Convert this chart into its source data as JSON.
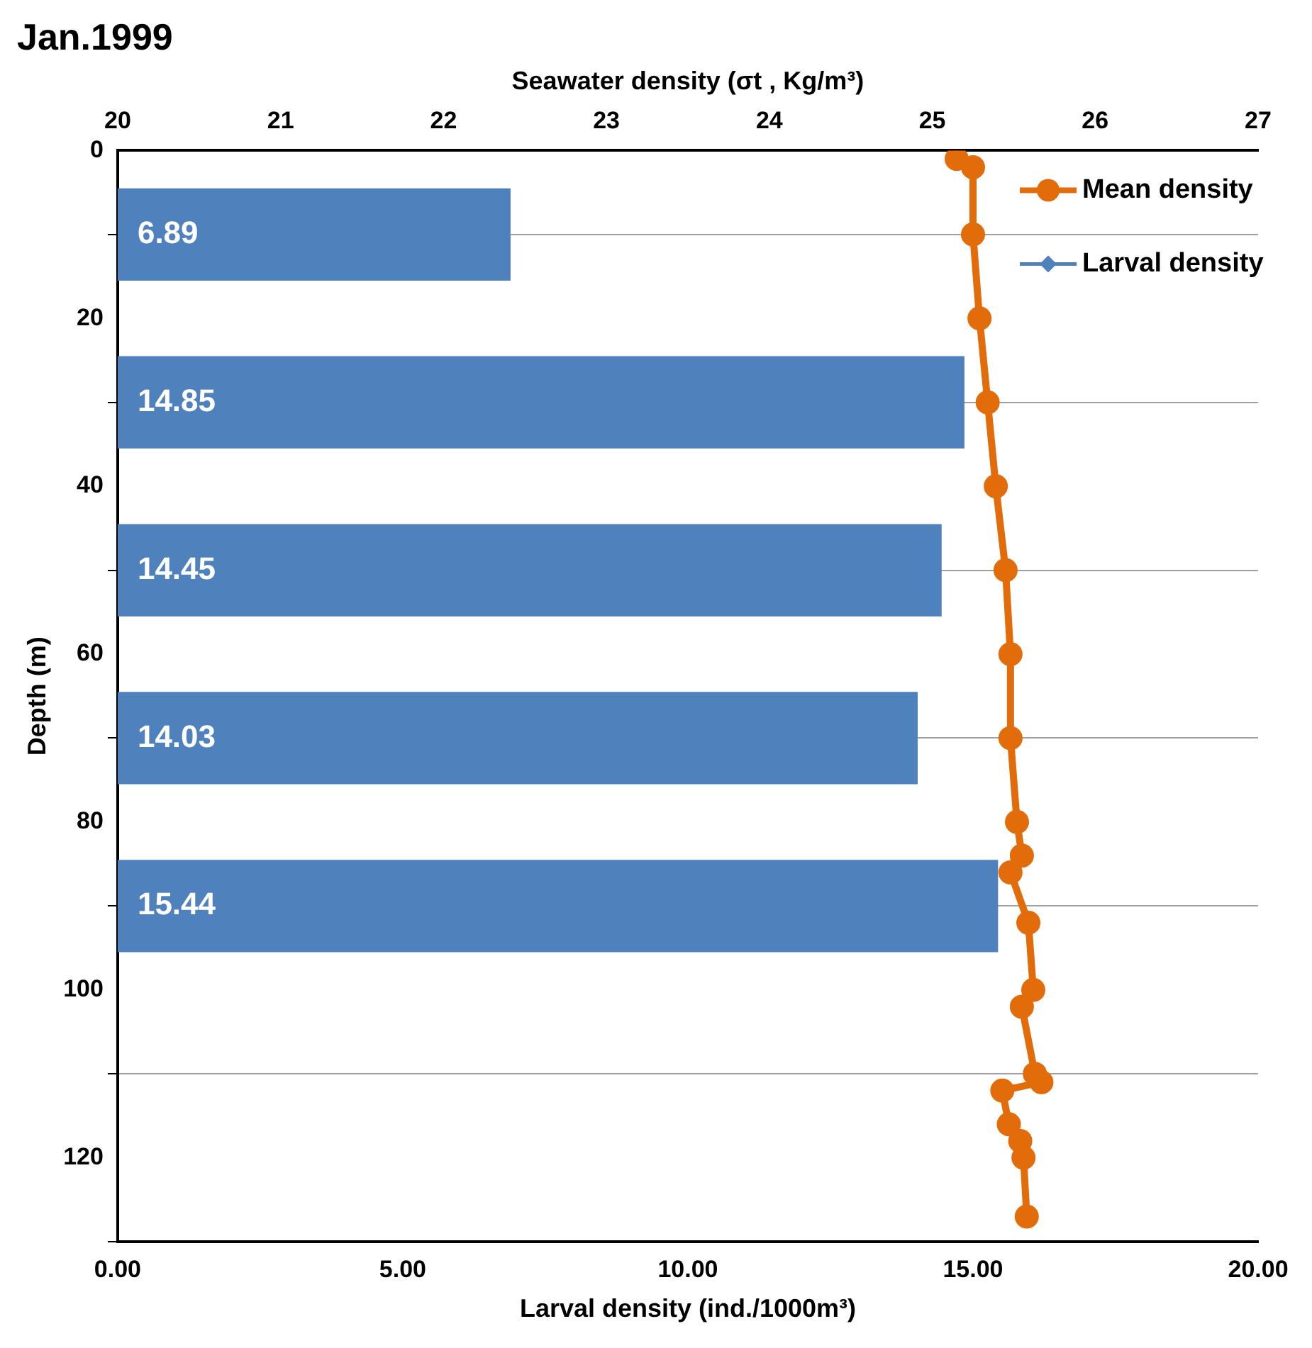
{
  "chart_data": {
    "type": "bar",
    "orientation": "horizontal",
    "title": "Jan.1999",
    "xlabel": "Larval density (ind./1000m³)",
    "x2label": "Seawater density (σt , Kg/m³)",
    "ylabel": "Depth (m)",
    "xlim": [
      0,
      20
    ],
    "xticks": [
      {
        "value": 0,
        "label": "0.00"
      },
      {
        "value": 5,
        "label": "5.00"
      },
      {
        "value": 10,
        "label": "10.00"
      },
      {
        "value": 15,
        "label": "15.00"
      },
      {
        "value": 20,
        "label": "20.00"
      }
    ],
    "x2lim": [
      20,
      27
    ],
    "x2ticks": [
      20,
      21,
      22,
      23,
      24,
      25,
      26,
      27
    ],
    "ylim": [
      130,
      0
    ],
    "yticks": [
      0,
      20,
      40,
      60,
      80,
      100,
      120
    ],
    "grid": "y",
    "legend": "top right",
    "series": [
      {
        "name": "Mean density",
        "type": "line",
        "axis": "x2",
        "color": "#e36c0a",
        "marker": "circle",
        "line_style": "solid",
        "x": [
          1,
          2,
          10,
          20,
          30,
          40,
          50,
          60,
          70,
          80,
          84,
          86,
          92,
          100,
          102,
          110,
          111,
          112,
          116,
          118,
          120,
          127
        ],
        "values": [
          25.15,
          25.25,
          25.25,
          25.29,
          25.34,
          25.39,
          25.45,
          25.48,
          25.48,
          25.52,
          25.55,
          25.48,
          25.59,
          25.62,
          25.55,
          25.63,
          25.67,
          25.43,
          25.47,
          25.54,
          25.56,
          25.58
        ]
      },
      {
        "name": "Larval density",
        "color": "#4f81bd",
        "marker": "diamond",
        "x": [
          10,
          30,
          50,
          70,
          90
        ],
        "values": [
          6.89,
          14.85,
          14.45,
          14.03,
          15.44
        ],
        "value_labels": [
          "6.89",
          "14.85",
          "14.45",
          "14.03",
          "15.44"
        ]
      }
    ]
  }
}
